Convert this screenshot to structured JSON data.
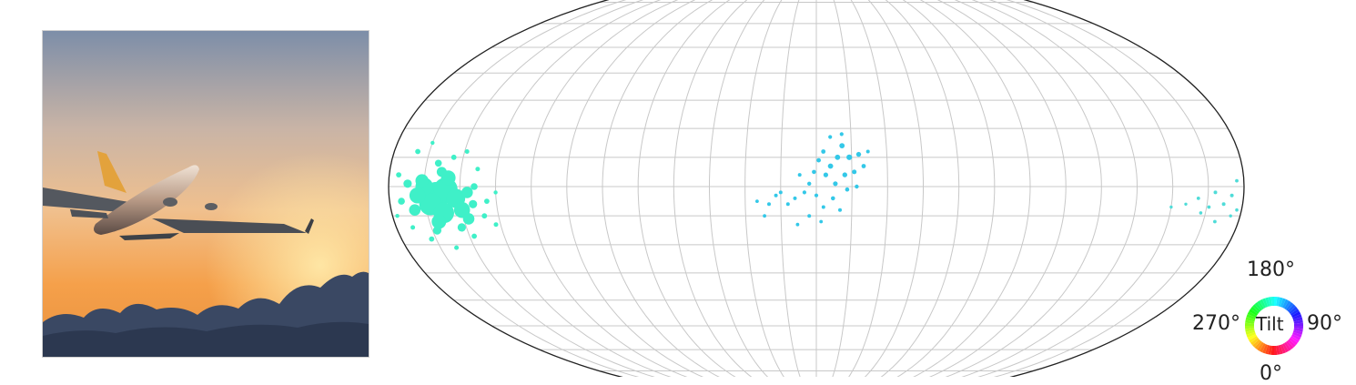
{
  "image_panel": {
    "icon": "airplane-photo",
    "colors": {
      "sky_top": "#7a8aa3",
      "sky_mid": "#e8b58f",
      "sky_low": "#f29c45",
      "clouds": "#2f3b52"
    }
  },
  "chart_data": {
    "type": "scatter",
    "projection": "mollweide",
    "grid": true,
    "meridian_step_deg": 15,
    "parallel_step_deg": 10,
    "xlabel": "",
    "ylabel": "",
    "title": "",
    "colormap": "hue-by-tilt",
    "clusters": [
      {
        "lon_center": -160,
        "lat_center": -2,
        "color": "#3ff0c8",
        "points": [
          [
            -160,
            -3,
            16
          ],
          [
            -156,
            -1,
            14
          ],
          [
            -163,
            -6,
            13
          ],
          [
            -158,
            -9,
            12
          ],
          [
            -152,
            -4,
            11
          ],
          [
            -165,
            0,
            10
          ],
          [
            -150,
            -8,
            9
          ],
          [
            -168,
            -3,
            9
          ],
          [
            -155,
            3,
            8
          ],
          [
            -161,
            -12,
            8
          ],
          [
            -147,
            -2,
            6
          ],
          [
            -170,
            -8,
            6
          ],
          [
            -166,
            2,
            7
          ],
          [
            -148,
            -11,
            6
          ],
          [
            -158,
            5,
            5
          ],
          [
            -172,
            1,
            4
          ],
          [
            -145,
            -6,
            4
          ],
          [
            -152,
            -14,
            4
          ],
          [
            -163,
            -15,
            4
          ],
          [
            -144,
            0,
            3
          ],
          [
            -175,
            -5,
            3
          ],
          [
            -160,
            8,
            3
          ],
          [
            -141,
            -10,
            2
          ],
          [
            -167,
            -18,
            2
          ],
          [
            -154,
            10,
            2
          ],
          [
            -139,
            -5,
            2
          ],
          [
            -170,
            12,
            2
          ],
          [
            -148,
            -17,
            2
          ],
          [
            -176,
            4,
            2
          ],
          [
            -137,
            -13,
            1.5
          ],
          [
            -158,
            -21,
            1.5
          ],
          [
            -143,
            6,
            1.5
          ],
          [
            -173,
            -14,
            1.5
          ],
          [
            -149,
            12,
            1.5
          ],
          [
            -135,
            -2,
            1.2
          ],
          [
            -165,
            15,
            1.2
          ],
          [
            -178,
            -10,
            1.2
          ]
        ]
      },
      {
        "lon_center": 10,
        "lat_center": 4,
        "color": "#33c8e8",
        "points": [
          [
            14,
            10,
            2.2
          ],
          [
            9,
            10,
            2
          ],
          [
            6,
            7,
            2
          ],
          [
            11,
            14,
            2
          ],
          [
            18,
            11,
            1.8
          ],
          [
            12,
            4,
            1.8
          ],
          [
            4,
            4,
            1.6
          ],
          [
            8,
            1,
            1.6
          ],
          [
            16,
            5,
            1.5
          ],
          [
            1,
            9,
            1.4
          ],
          [
            20,
            7,
            1.4
          ],
          [
            3,
            12,
            1.4
          ],
          [
            -1,
            5,
            1.3
          ],
          [
            13,
            -1,
            1.3
          ],
          [
            7,
            -4,
            1.3
          ],
          [
            -3,
            1,
            1.2
          ],
          [
            17,
            0,
            1.2
          ],
          [
            0,
            -3,
            1.1
          ],
          [
            -5,
            -2,
            1.1
          ],
          [
            11,
            18,
            1.1
          ],
          [
            6,
            17,
            1.1
          ],
          [
            -7,
            4,
            1
          ],
          [
            22,
            12,
            1
          ],
          [
            -9,
            -4,
            1
          ],
          [
            -12,
            -6,
            1
          ],
          [
            3,
            -7,
            1
          ],
          [
            -15,
            -2,
            1
          ],
          [
            -20,
            -6,
            1
          ],
          [
            10,
            -8,
            0.9
          ],
          [
            -3,
            -10,
            0.9
          ],
          [
            -17,
            -3,
            0.9
          ],
          [
            -25,
            -5,
            0.8
          ],
          [
            -8,
            -13,
            0.8
          ],
          [
            2,
            -12,
            0.8
          ],
          [
            -22,
            -10,
            0.8
          ]
        ]
      },
      {
        "lon_center": 170,
        "lat_center": -2,
        "color": "#4fdcd8",
        "points": [
          [
            175,
            -3,
            1
          ],
          [
            172,
            -6,
            0.9
          ],
          [
            168,
            -2,
            0.9
          ],
          [
            166,
            -7,
            0.8
          ],
          [
            161,
            -4,
            0.8
          ],
          [
            177,
            2,
            0.8
          ],
          [
            170,
            -12,
            0.8
          ],
          [
            178,
            -8,
            0.7
          ],
          [
            163,
            -9,
            0.7
          ],
          [
            156,
            -6,
            0.6
          ],
          [
            150,
            -7,
            0.6
          ],
          [
            176,
            -10,
            0.6
          ]
        ]
      }
    ]
  },
  "tilt_legend": {
    "title": "Tilt",
    "labels": {
      "top": "180°",
      "left": "270°",
      "right": "90°",
      "bottom": "0°"
    }
  }
}
